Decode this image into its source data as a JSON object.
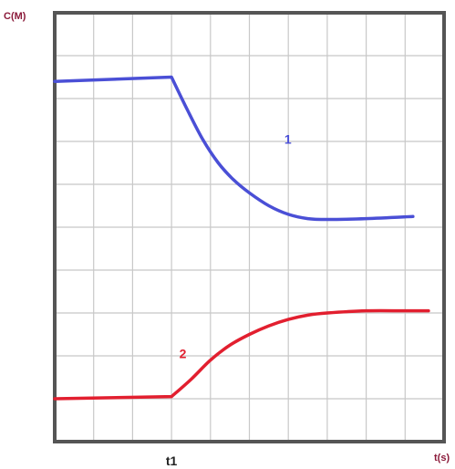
{
  "chart_data": {
    "type": "line",
    "ylabel": "C(M)",
    "xlabel": "t(s)",
    "grid": true,
    "xlim": [
      0,
      10
    ],
    "ylim": [
      0,
      10
    ],
    "x_ticks": [
      {
        "value": 3.0,
        "label": "t1"
      }
    ],
    "colors": {
      "series1": "#4a4fd6",
      "series2": "#e21f2f",
      "labels": "#8b1a3a",
      "frame": "#555555",
      "grid": "#c8c8c8"
    },
    "series": [
      {
        "label": "1",
        "label_at": [
          5.9,
          6.95
        ],
        "points": [
          [
            0,
            8.4
          ],
          [
            3.0,
            8.5
          ],
          [
            3.4,
            7.75
          ],
          [
            3.8,
            7.05
          ],
          [
            4.2,
            6.5
          ],
          [
            4.6,
            6.1
          ],
          [
            5.0,
            5.8
          ],
          [
            5.5,
            5.5
          ],
          [
            6.0,
            5.3
          ],
          [
            6.5,
            5.2
          ],
          [
            7.0,
            5.18
          ],
          [
            8.0,
            5.2
          ],
          [
            9.2,
            5.25
          ]
        ]
      },
      {
        "label": "2",
        "label_at": [
          3.2,
          1.95
        ],
        "points": [
          [
            0,
            1.0
          ],
          [
            3.0,
            1.05
          ],
          [
            3.5,
            1.45
          ],
          [
            4.0,
            1.9
          ],
          [
            4.5,
            2.25
          ],
          [
            5.0,
            2.5
          ],
          [
            5.5,
            2.7
          ],
          [
            6.0,
            2.85
          ],
          [
            6.5,
            2.95
          ],
          [
            7.0,
            3.0
          ],
          [
            8.0,
            3.05
          ],
          [
            9.0,
            3.05
          ],
          [
            9.6,
            3.05
          ]
        ]
      }
    ]
  }
}
